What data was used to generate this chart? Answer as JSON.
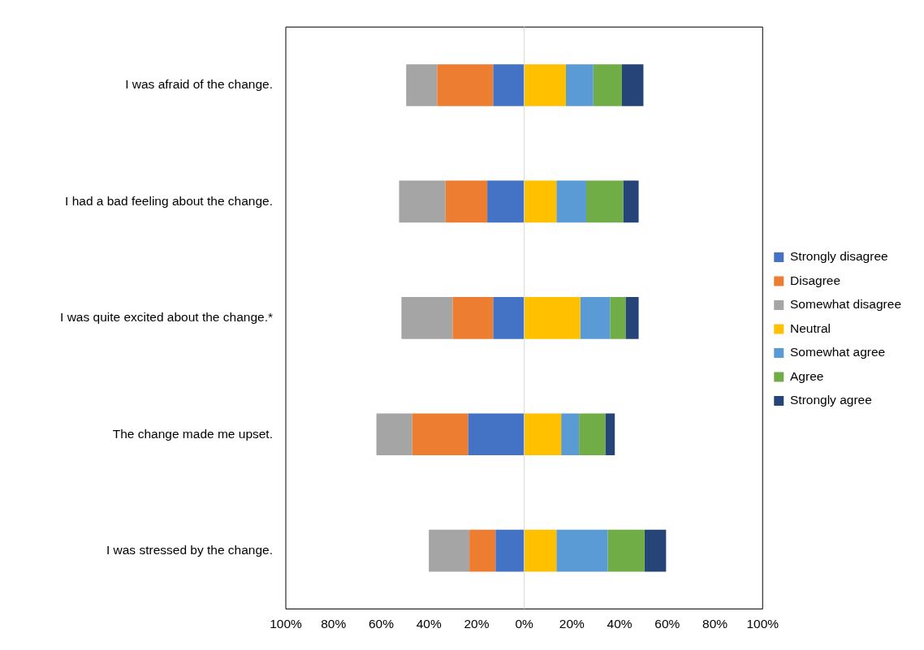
{
  "chart_data": {
    "type": "bar",
    "orientation": "horizontal",
    "stacked": true,
    "categories": [
      "I was afraid of the change.",
      "I had a bad feeling about the change.",
      "I was quite excited about the change.*",
      "The change made me upset.",
      "I was stressed by the change."
    ],
    "series": [
      {
        "name": "Strongly disagree",
        "color": "#4472c4",
        "values": [
          -13,
          -15.5,
          -13,
          -23.5,
          -12
        ]
      },
      {
        "name": "Disagree",
        "color": "#ed7d31",
        "values": [
          -23.5,
          -17.5,
          -17,
          -23.5,
          -11
        ]
      },
      {
        "name": "Somewhat disagree",
        "color": "#a5a5a5",
        "values": [
          -13,
          -19.5,
          -21.5,
          -15,
          -17
        ]
      },
      {
        "name": "Neutral",
        "color": "#ffc000",
        "values": [
          17.5,
          13.5,
          23.5,
          15.5,
          13.5
        ]
      },
      {
        "name": "Somewhat agree",
        "color": "#5b9bd5",
        "values": [
          11.5,
          12.5,
          12.5,
          7.5,
          21.5
        ]
      },
      {
        "name": "Agree",
        "color": "#70ad47",
        "values": [
          12,
          15.5,
          6.5,
          11,
          15.5
        ]
      },
      {
        "name": "Strongly agree",
        "color": "#264478",
        "values": [
          9,
          6.5,
          5.5,
          4,
          9
        ]
      }
    ],
    "xlim": [
      -100,
      100
    ],
    "xticks": [
      {
        "value": -100,
        "label": "100%"
      },
      {
        "value": -80,
        "label": "80%"
      },
      {
        "value": -60,
        "label": "60%"
      },
      {
        "value": -40,
        "label": "40%"
      },
      {
        "value": -20,
        "label": "20%"
      },
      {
        "value": 0,
        "label": "0%"
      },
      {
        "value": 20,
        "label": "20%"
      },
      {
        "value": 40,
        "label": "40%"
      },
      {
        "value": 60,
        "label": "60%"
      },
      {
        "value": 80,
        "label": "80%"
      },
      {
        "value": 100,
        "label": "100%"
      }
    ],
    "ref_lines": [
      {
        "axis": "x",
        "value": 0,
        "color": "#d9d9d9"
      }
    ],
    "grid": false,
    "legend": "right"
  }
}
